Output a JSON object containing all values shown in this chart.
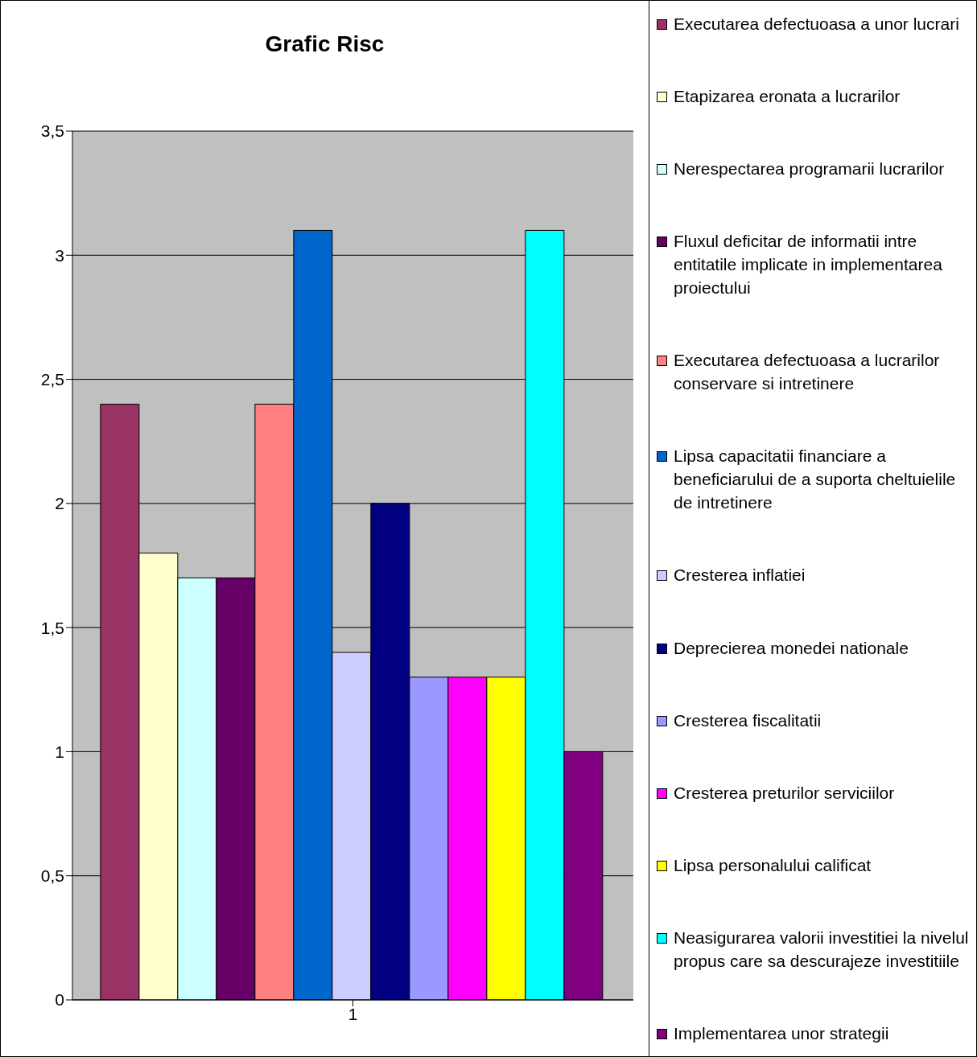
{
  "chart_data": {
    "type": "bar",
    "title": "Grafic Risc",
    "categories": [
      "1"
    ],
    "series": [
      {
        "name": "Executarea defectuoasa a unor lucrari",
        "color": "#993366",
        "values": [
          2.4
        ]
      },
      {
        "name": "Etapizarea eronata a lucrarilor",
        "color": "#ffffcc",
        "values": [
          1.8
        ]
      },
      {
        "name": "Nerespectarea programarii lucrarilor",
        "color": "#ccffff",
        "values": [
          1.7
        ]
      },
      {
        "name": "Fluxul deficitar de informatii intre entitatile implicate in implementarea proiectului",
        "color": "#660066",
        "values": [
          1.7
        ]
      },
      {
        "name": "Executarea defectuoasa a lucrarilor conservare si intretinere",
        "color": "#ff8080",
        "values": [
          2.4
        ]
      },
      {
        "name": "Lipsa capacitatii financiare a beneficiarului de a suporta cheltuielile de intretinere",
        "color": "#0066cc",
        "values": [
          3.1
        ]
      },
      {
        "name": "Cresterea inflatiei",
        "color": "#ccccff",
        "values": [
          1.4
        ]
      },
      {
        "name": "Deprecierea monedei nationale",
        "color": "#000080",
        "values": [
          2.0
        ]
      },
      {
        "name": "Cresterea fiscalitatii",
        "color": "#9999ff",
        "values": [
          1.3
        ]
      },
      {
        "name": "Cresterea preturilor serviciilor",
        "color": "#ff00ff",
        "values": [
          1.3
        ]
      },
      {
        "name": "Lipsa personalului calificat",
        "color": "#ffff00",
        "values": [
          1.3
        ]
      },
      {
        "name": "Neasigurarea valorii investitiei la nivelul propus care sa descurajeze investitiile",
        "color": "#00ffff",
        "values": [
          3.1
        ]
      },
      {
        "name": "Implementarea unor strategii",
        "color": "#800080",
        "values": [
          1.0
        ]
      }
    ],
    "ylim": [
      0,
      3.5
    ],
    "yticks": [
      0,
      {
        "value": 0.5,
        "label": "0,5"
      },
      1,
      {
        "value": 1.5,
        "label": "1,5"
      },
      2,
      {
        "value": 2.5,
        "label": "2,5"
      },
      3,
      {
        "value": 3.5,
        "label": "3,5"
      }
    ],
    "grid": "y",
    "legend": "right"
  }
}
